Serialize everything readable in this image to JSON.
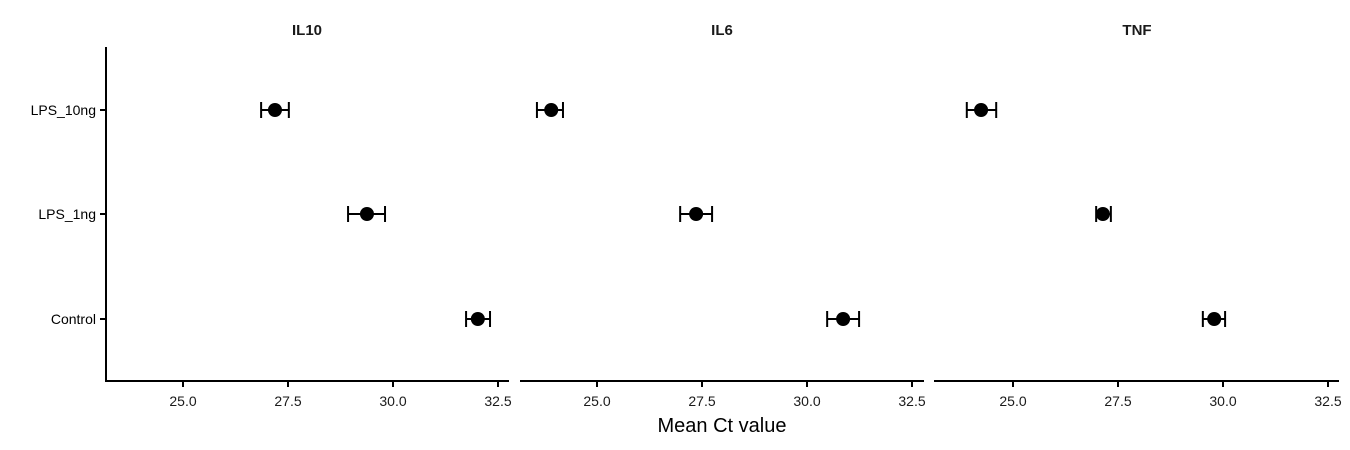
{
  "chart_data": {
    "type": "scatter",
    "subtype": "dot-with-horizontal-errorbars (faceted)",
    "title": "",
    "xlabel": "Mean Ct value",
    "ylabel": "",
    "categories": [
      "LPS_10ng",
      "LPS_1ng",
      "Control"
    ],
    "xlim": [
      23.5,
      33.1
    ],
    "xticks": [
      25.0,
      27.5,
      30.0,
      32.5
    ],
    "xtick_labels": [
      "25.0",
      "27.5",
      "30.0",
      "32.5"
    ],
    "grid": false,
    "legend": null,
    "facets": [
      {
        "title": "IL10",
        "points": [
          {
            "category": "LPS_10ng",
            "mean": 27.19,
            "lower": 26.86,
            "upper": 27.52
          },
          {
            "category": "LPS_1ng",
            "mean": 29.38,
            "lower": 28.93,
            "upper": 29.81
          },
          {
            "category": "Control",
            "mean": 32.02,
            "lower": 31.74,
            "upper": 32.31
          }
        ]
      },
      {
        "title": "IL6",
        "points": [
          {
            "category": "LPS_10ng",
            "mean": 23.91,
            "lower": 23.57,
            "upper": 24.19
          },
          {
            "category": "LPS_1ng",
            "mean": 27.36,
            "lower": 26.98,
            "upper": 27.74
          },
          {
            "category": "Control",
            "mean": 30.86,
            "lower": 30.48,
            "upper": 31.24
          }
        ]
      },
      {
        "title": "TNF",
        "points": [
          {
            "category": "LPS_10ng",
            "mean": 24.24,
            "lower": 23.9,
            "upper": 24.6
          },
          {
            "category": "LPS_1ng",
            "mean": 27.14,
            "lower": 26.98,
            "upper": 27.33
          },
          {
            "category": "Control",
            "mean": 29.79,
            "lower": 29.52,
            "upper": 30.05
          }
        ]
      }
    ]
  },
  "labels": {
    "facet_titles": [
      "IL10",
      "IL6",
      "TNF"
    ],
    "y_categories": [
      "LPS_10ng",
      "LPS_1ng",
      "Control"
    ],
    "x_title": "Mean Ct value"
  },
  "colors": {
    "point": "#000000",
    "axis": "#000000",
    "text": "#1a1a1a",
    "background": "#ffffff"
  }
}
